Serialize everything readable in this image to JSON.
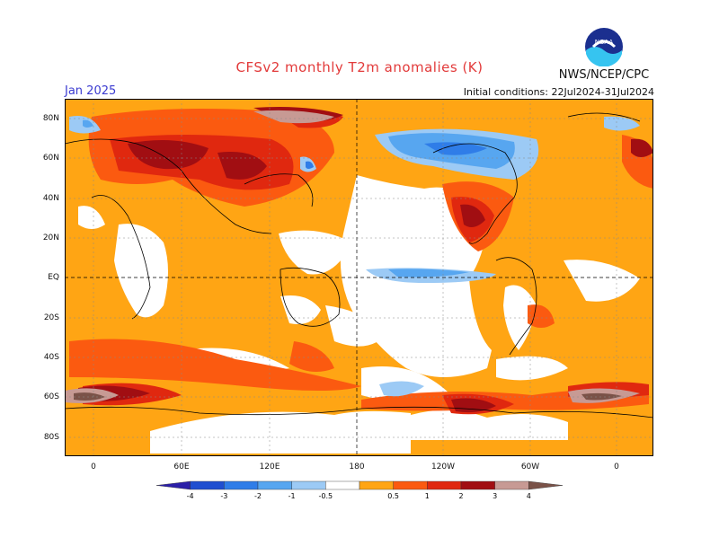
{
  "title": "CFSv2 monthly T2m anomalies (K)",
  "agency": "NWS/NCEP/CPC",
  "logo_text": "NOAA",
  "month": "Jan 2025",
  "initial_conditions": "Initial conditions: 22Jul2024-31Jul2024",
  "y_ticks": [
    "80N",
    "60N",
    "40N",
    "20N",
    "EQ",
    "20S",
    "40S",
    "60S",
    "80S"
  ],
  "x_ticks": [
    "0",
    "60E",
    "120E",
    "180",
    "120W",
    "60W",
    "0"
  ],
  "colorbar": {
    "labels": [
      "-4",
      "-3",
      "-2",
      "-1",
      "-0.5",
      "0.5",
      "1",
      "2",
      "3",
      "4"
    ],
    "colors": [
      "#2b1fa8",
      "#1f4fd0",
      "#2f7de8",
      "#57a6f0",
      "#9ccaf5",
      "#ffffff",
      "#ffa514",
      "#fb5a10",
      "#e0280f",
      "#a10e12",
      "#c79a94",
      "#7a5248"
    ]
  },
  "colors": {
    "warm1": "#ffa514",
    "warm2": "#fb5a10",
    "warm3": "#e0280f",
    "warm4": "#a10e12",
    "warm5": "#c79a94",
    "cool1": "#9ccaf5",
    "cool2": "#57a6f0",
    "cool3": "#2f7de8"
  }
}
